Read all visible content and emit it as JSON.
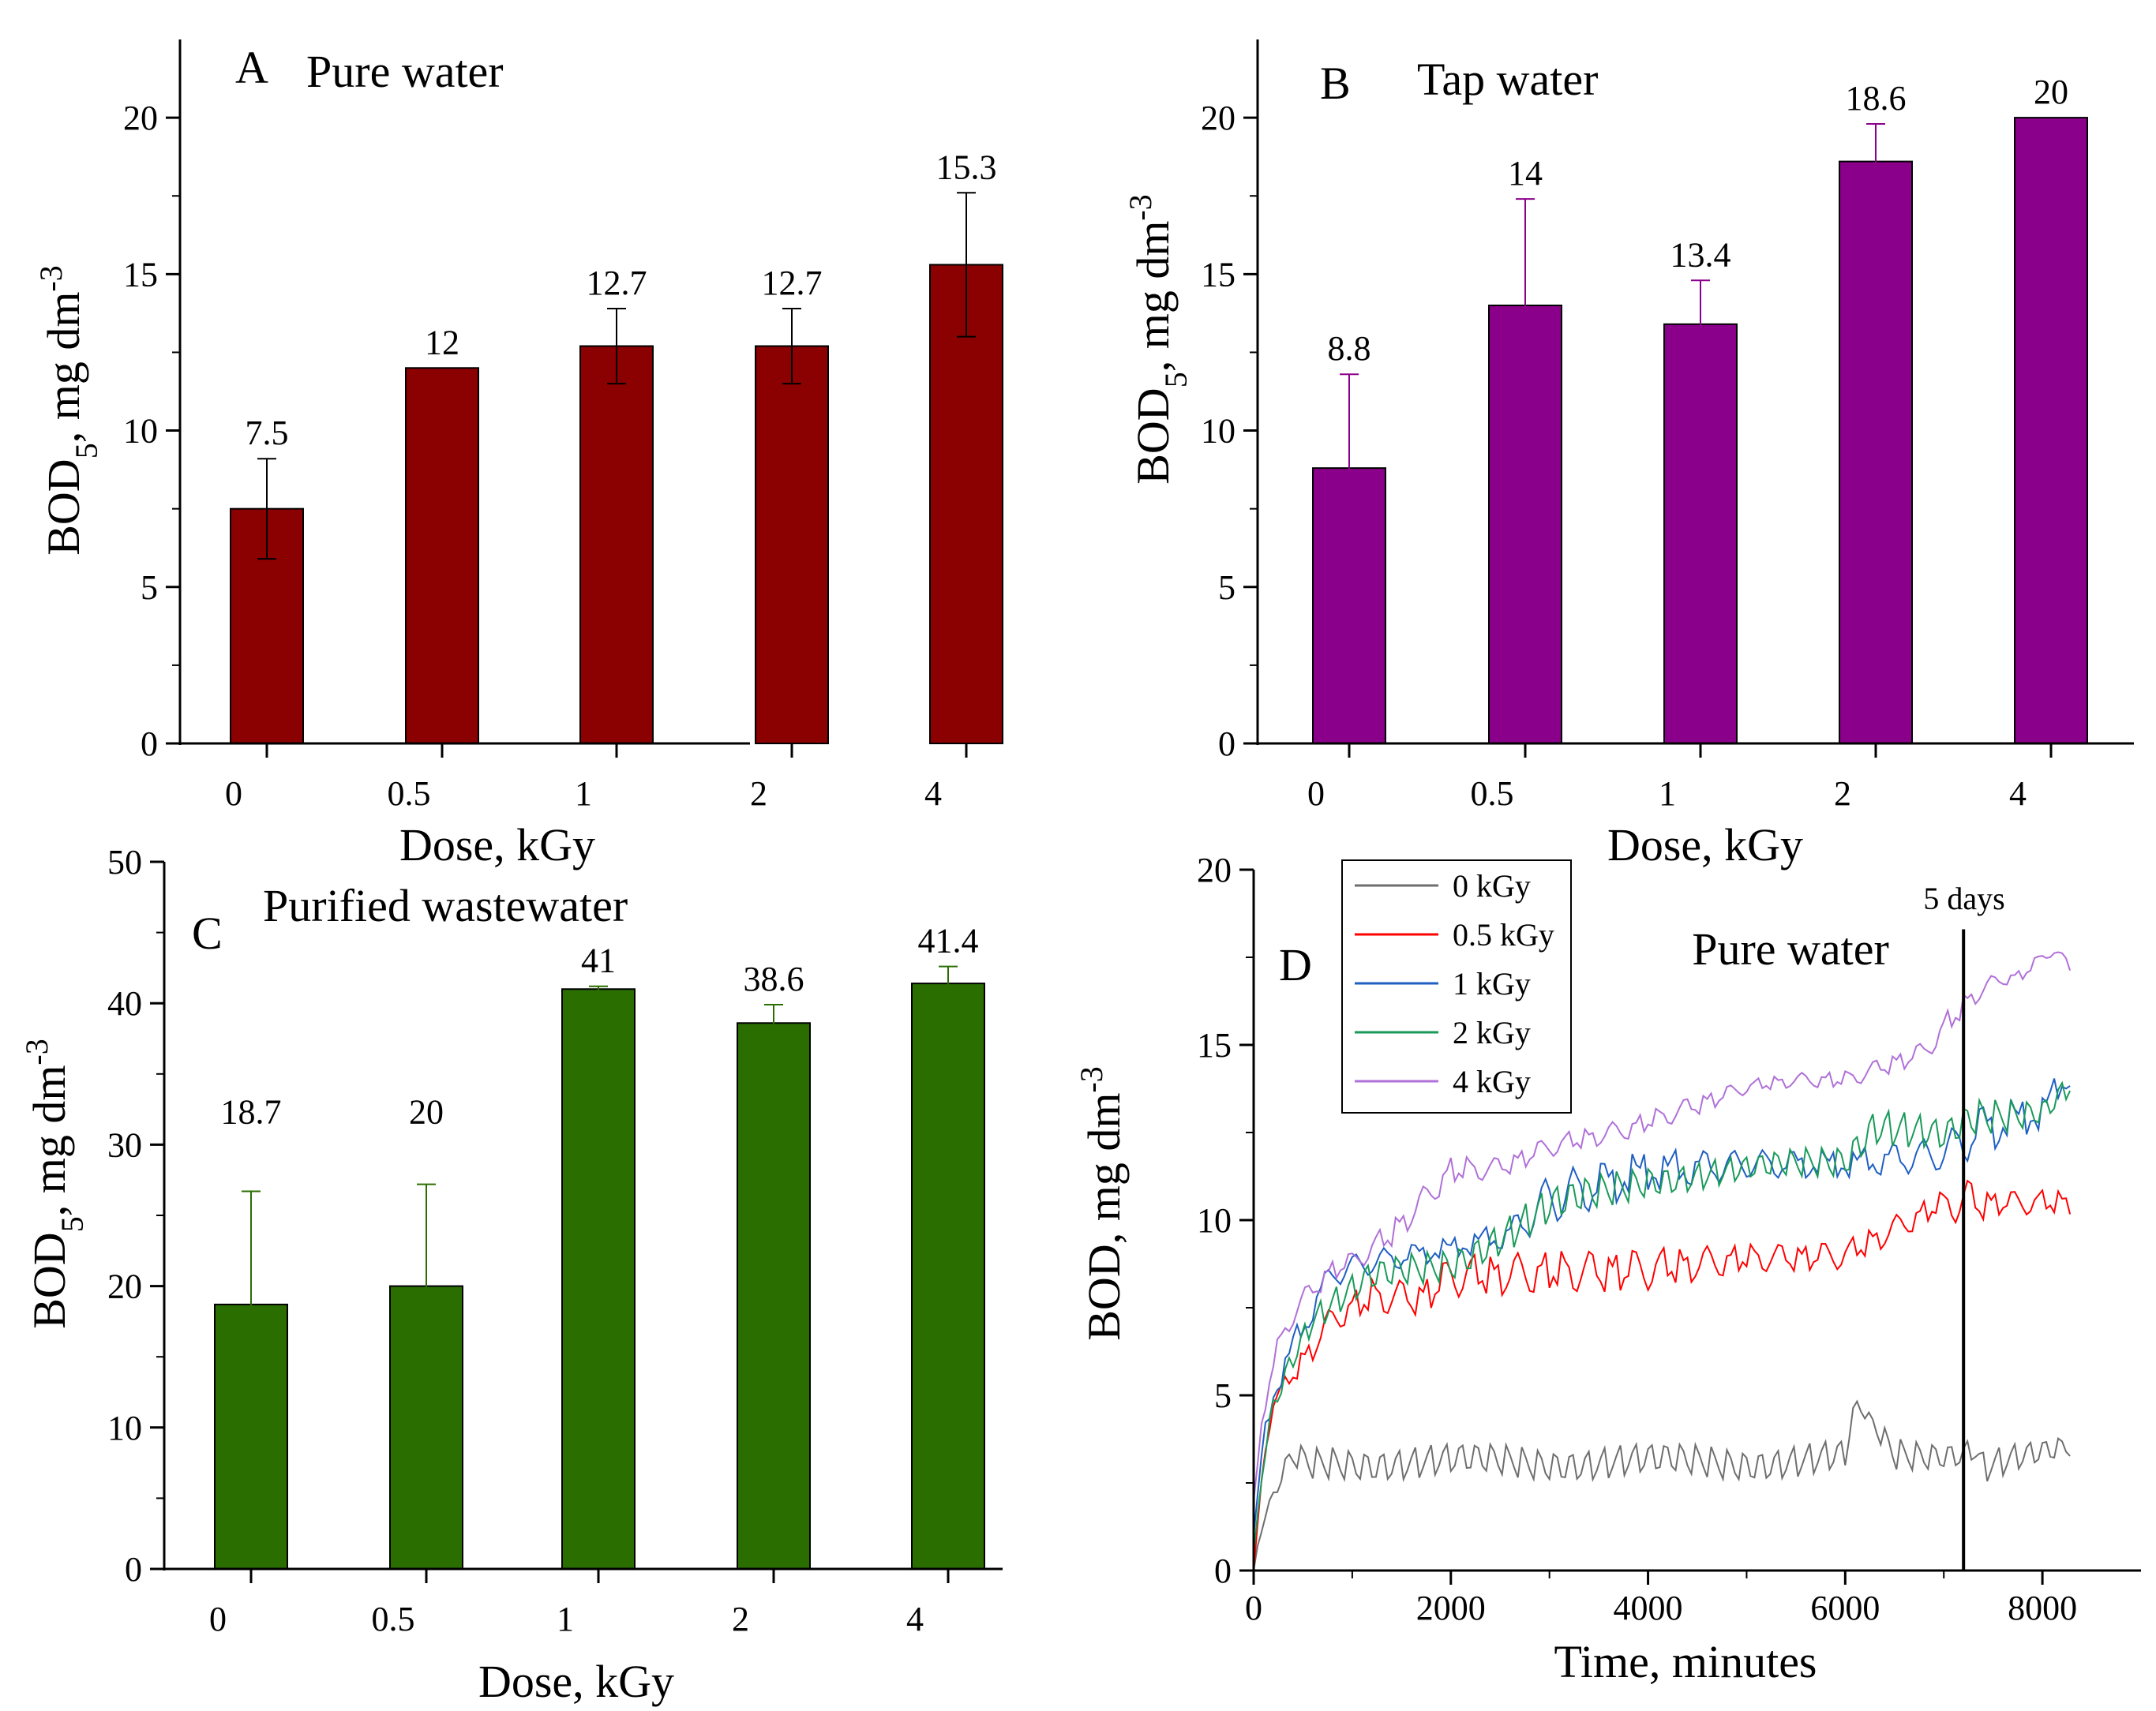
{
  "chart_data": [
    {
      "id": "A",
      "type": "bar",
      "panel_letter": "A",
      "title": "Pure water",
      "categories": [
        "0",
        "0.5",
        "1",
        "2",
        "4"
      ],
      "values": [
        7.5,
        12,
        12.7,
        12.7,
        15.3
      ],
      "errors": [
        1.6,
        0,
        1.2,
        1.2,
        2.3
      ],
      "labels": [
        "7.5",
        "12",
        "12.7",
        "12.7",
        "15.3"
      ],
      "xlabel": "Dose, kGy",
      "ylabel": "BOD5, mg dm-3",
      "ylim": [
        0,
        22.5
      ],
      "yticks": [
        0,
        5,
        10,
        15,
        20
      ],
      "color": "#8b0000"
    },
    {
      "id": "B",
      "type": "bar",
      "panel_letter": "B",
      "title": "Tap water",
      "categories": [
        "0",
        "0.5",
        "1",
        "2",
        "4"
      ],
      "values": [
        8.8,
        14,
        13.4,
        18.6,
        20
      ],
      "errors": [
        3.0,
        3.4,
        1.4,
        1.2,
        0
      ],
      "labels": [
        "8.8",
        "14",
        "13.4",
        "18.6",
        "20"
      ],
      "xlabel": "Dose, kGy",
      "ylabel": "BOD5, mg dm-3",
      "ylim": [
        0,
        22.5
      ],
      "yticks": [
        0,
        5,
        10,
        15,
        20
      ],
      "color": "#8b008b"
    },
    {
      "id": "C",
      "type": "bar",
      "panel_letter": "C",
      "title": "Purified wastewater",
      "categories": [
        "0",
        "0.5",
        "1",
        "2",
        "4"
      ],
      "values": [
        18.7,
        20,
        41,
        38.6,
        41.4
      ],
      "errors": [
        8.0,
        7.2,
        0.2,
        1.3,
        1.2
      ],
      "labels": [
        "18.7",
        "20",
        "41",
        "38.6",
        "41.4"
      ],
      "xlabel": "Dose, kGy",
      "ylabel": "BOD5, mg dm-3",
      "ylim": [
        0,
        50
      ],
      "yticks": [
        0,
        10,
        20,
        30,
        40,
        50
      ],
      "color": "#2a6e00"
    },
    {
      "id": "D",
      "type": "line",
      "panel_letter": "D",
      "title": "Pure water",
      "annotation": "5 days",
      "marker_x": 7200,
      "xlabel": "Time, minutes",
      "ylabel": "BOD, mg dm-3",
      "xlim": [
        0,
        9000
      ],
      "ylim": [
        0,
        20
      ],
      "xticks": [
        0,
        2000,
        4000,
        6000,
        8000
      ],
      "yticks": [
        0,
        5,
        10,
        15,
        20
      ],
      "series": [
        {
          "name": "0 kGy",
          "color": "#6e6e6e",
          "x": [
            0,
            100,
            200,
            300,
            400,
            600,
            800,
            1000,
            1400,
            2000,
            3000,
            4000,
            5000,
            6000,
            6100,
            6500,
            7200,
            7300,
            7400,
            8000,
            8300
          ],
          "y": [
            0,
            1.5,
            2.0,
            2.8,
            3.2,
            3.0,
            3.1,
            3.1,
            3.1,
            3.1,
            3.1,
            3.1,
            3.1,
            3.2,
            4.8,
            3.3,
            3.4,
            3.6,
            3.0,
            3.3,
            3.5
          ],
          "amp": [
            0,
            0.5,
            0.5,
            0.6,
            0.8,
            1.0,
            1.0,
            1.0,
            1.0,
            1.0,
            1.0,
            1.0,
            1.0,
            1.0,
            0.2,
            1.0,
            0.8,
            0.8,
            1.0,
            0.8,
            0.7
          ]
        },
        {
          "name": "0.5 kGy",
          "color": "#ff0000",
          "x": [
            0,
            100,
            200,
            400,
            600,
            800,
            1200,
            1700,
            2000,
            3000,
            4000,
            5000,
            6000,
            7000,
            7200,
            7500,
            8000,
            8300
          ],
          "y": [
            0,
            3.2,
            4.8,
            5.6,
            6.4,
            7.2,
            7.8,
            7.8,
            8.4,
            8.5,
            8.6,
            8.9,
            9.0,
            10.5,
            10.5,
            10.5,
            10.5,
            10.5
          ],
          "amp": [
            0,
            0.3,
            0.4,
            0.6,
            0.8,
            0.8,
            1.0,
            1.0,
            1.2,
            1.2,
            1.2,
            0.8,
            0.8,
            0.7,
            1.5,
            0.7,
            0.7,
            0.7
          ]
        },
        {
          "name": "1 kGy",
          "color": "#1f5fc2",
          "x": [
            0,
            100,
            200,
            400,
            600,
            800,
            1200,
            2000,
            2600,
            3000,
            4000,
            5000,
            6000,
            7000,
            7300,
            8000,
            8300
          ],
          "y": [
            1.0,
            3.8,
            5.0,
            6.4,
            7.5,
            8.5,
            8.8,
            9.2,
            9.6,
            10.6,
            11.4,
            11.6,
            11.6,
            11.9,
            12.5,
            13.1,
            14.3
          ],
          "amp": [
            0,
            0.4,
            0.5,
            0.8,
            0.8,
            0.8,
            0.7,
            0.6,
            0.8,
            1.5,
            1.2,
            0.8,
            0.8,
            1.0,
            1.5,
            1.0,
            0.8
          ]
        },
        {
          "name": "2 kGy",
          "color": "#1a9a5a",
          "x": [
            0,
            100,
            200,
            400,
            600,
            800,
            1200,
            2000,
            3000,
            4000,
            5000,
            6000,
            6300,
            7000,
            7300,
            8000,
            8300
          ],
          "y": [
            0.5,
            3.2,
            4.8,
            6.2,
            7.2,
            7.6,
            8.3,
            8.8,
            10.3,
            11.2,
            11.4,
            11.8,
            12.8,
            12.3,
            12.8,
            13.2,
            14.0
          ],
          "amp": [
            0,
            0.4,
            0.6,
            0.8,
            0.8,
            0.9,
            1.0,
            1.0,
            1.2,
            1.0,
            0.8,
            1.0,
            1.2,
            1.0,
            1.2,
            0.8,
            0.8
          ]
        },
        {
          "name": "4 kGy",
          "color": "#b070d8",
          "x": [
            0,
            100,
            200,
            400,
            600,
            800,
            1000,
            1400,
            2000,
            2500,
            3000,
            3800,
            4500,
            5000,
            5500,
            6000,
            6800,
            7100,
            7300,
            7500,
            7800,
            8000,
            8100,
            8300
          ],
          "y": [
            2.0,
            4.5,
            6.0,
            7.4,
            8.0,
            8.6,
            8.8,
            9.6,
            11.4,
            11.5,
            12.1,
            12.6,
            13.3,
            13.8,
            14.0,
            14.0,
            14.8,
            15.8,
            16.4,
            16.8,
            17.0,
            17.5,
            17.8,
            17.1
          ],
          "amp": [
            0,
            0.5,
            0.6,
            0.8,
            0.6,
            0.6,
            0.6,
            0.8,
            0.8,
            0.6,
            0.6,
            0.6,
            0.6,
            0.4,
            0.4,
            0.5,
            0.6,
            0.8,
            0.6,
            0.4,
            0.3,
            0.4,
            0.5,
            0.3
          ]
        }
      ]
    }
  ]
}
